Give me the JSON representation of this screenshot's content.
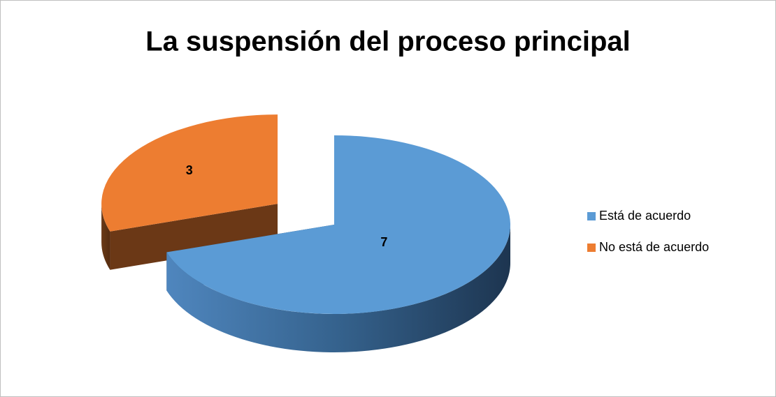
{
  "chart_data": {
    "type": "pie3d",
    "title": "La suspensión del proceso principal",
    "categories": [
      "Está de acuerdo",
      "No está de acuerdo"
    ],
    "values": [
      7,
      3
    ],
    "colors": [
      "#5b9bd5",
      "#ed7d31"
    ],
    "explode": [
      false,
      true
    ],
    "legend": "right"
  }
}
